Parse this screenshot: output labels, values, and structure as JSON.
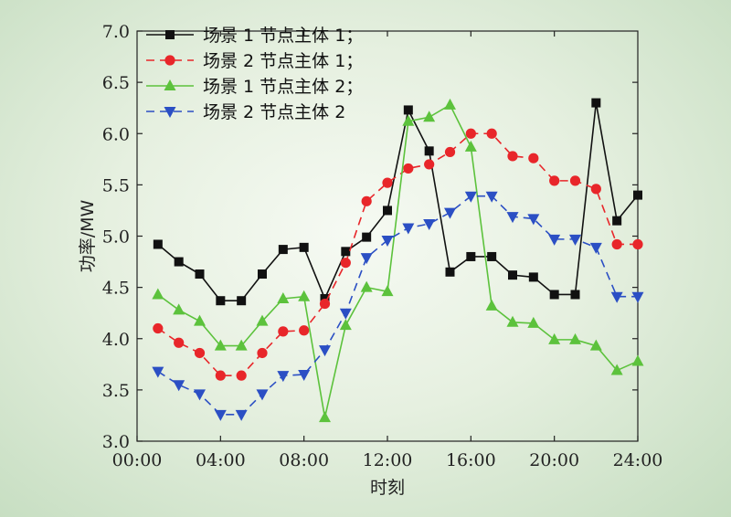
{
  "chart_data": {
    "type": "line",
    "xlabel": "时刻",
    "ylabel": "功率/MW",
    "xlim": [
      0,
      24
    ],
    "ylim": [
      3.0,
      7.0
    ],
    "x_ticks": [
      "00:00",
      "04:00",
      "08:00",
      "12:00",
      "16:00",
      "20:00",
      "24:00"
    ],
    "y_ticks": [
      "3.0",
      "3.5",
      "4.0",
      "4.5",
      "5.0",
      "5.5",
      "6.0",
      "6.5",
      "7.0"
    ],
    "legend_position": "top-left",
    "grid": false,
    "x": [
      1,
      2,
      3,
      4,
      5,
      6,
      7,
      8,
      9,
      10,
      11,
      12,
      13,
      14,
      15,
      16,
      17,
      18,
      19,
      20,
      21,
      22,
      23,
      24
    ],
    "series": [
      {
        "name": "场景 1 节点主体 1；",
        "color": "#111111",
        "marker": "square",
        "dash": "solid",
        "values": [
          4.92,
          4.75,
          4.63,
          4.37,
          4.37,
          4.63,
          4.87,
          4.89,
          4.39,
          4.85,
          4.99,
          5.25,
          6.23,
          5.83,
          4.65,
          4.8,
          4.8,
          4.62,
          4.6,
          4.43,
          4.43,
          6.3,
          5.15,
          5.4
        ]
      },
      {
        "name": "场景 2 节点主体 1；",
        "color": "#e8262a",
        "marker": "circle",
        "dash": "dashed",
        "values": [
          4.1,
          3.96,
          3.86,
          3.64,
          3.64,
          3.86,
          4.07,
          4.08,
          4.34,
          4.74,
          5.34,
          5.52,
          5.66,
          5.7,
          5.82,
          6.0,
          6.0,
          5.78,
          5.76,
          5.54,
          5.54,
          5.46,
          4.92,
          4.92
        ]
      },
      {
        "name": "场景 1 节点主体 2；",
        "color": "#5cc23c",
        "marker": "triangle-up",
        "dash": "solid",
        "values": [
          4.43,
          4.28,
          4.17,
          3.93,
          3.93,
          4.17,
          4.39,
          4.41,
          3.23,
          4.13,
          4.5,
          4.46,
          6.12,
          6.16,
          6.28,
          5.87,
          4.32,
          4.16,
          4.15,
          3.99,
          3.99,
          3.93,
          3.69,
          3.78
        ]
      },
      {
        "name": "场景 2 节点主体 2",
        "color": "#2b4fc4",
        "marker": "triangle-down",
        "dash": "dashed",
        "values": [
          3.68,
          3.55,
          3.46,
          3.26,
          3.26,
          3.46,
          3.64,
          3.65,
          3.89,
          4.25,
          4.79,
          4.96,
          5.08,
          5.12,
          5.23,
          5.39,
          5.39,
          5.19,
          5.17,
          4.97,
          4.97,
          4.89,
          4.41,
          4.41
        ]
      }
    ]
  }
}
